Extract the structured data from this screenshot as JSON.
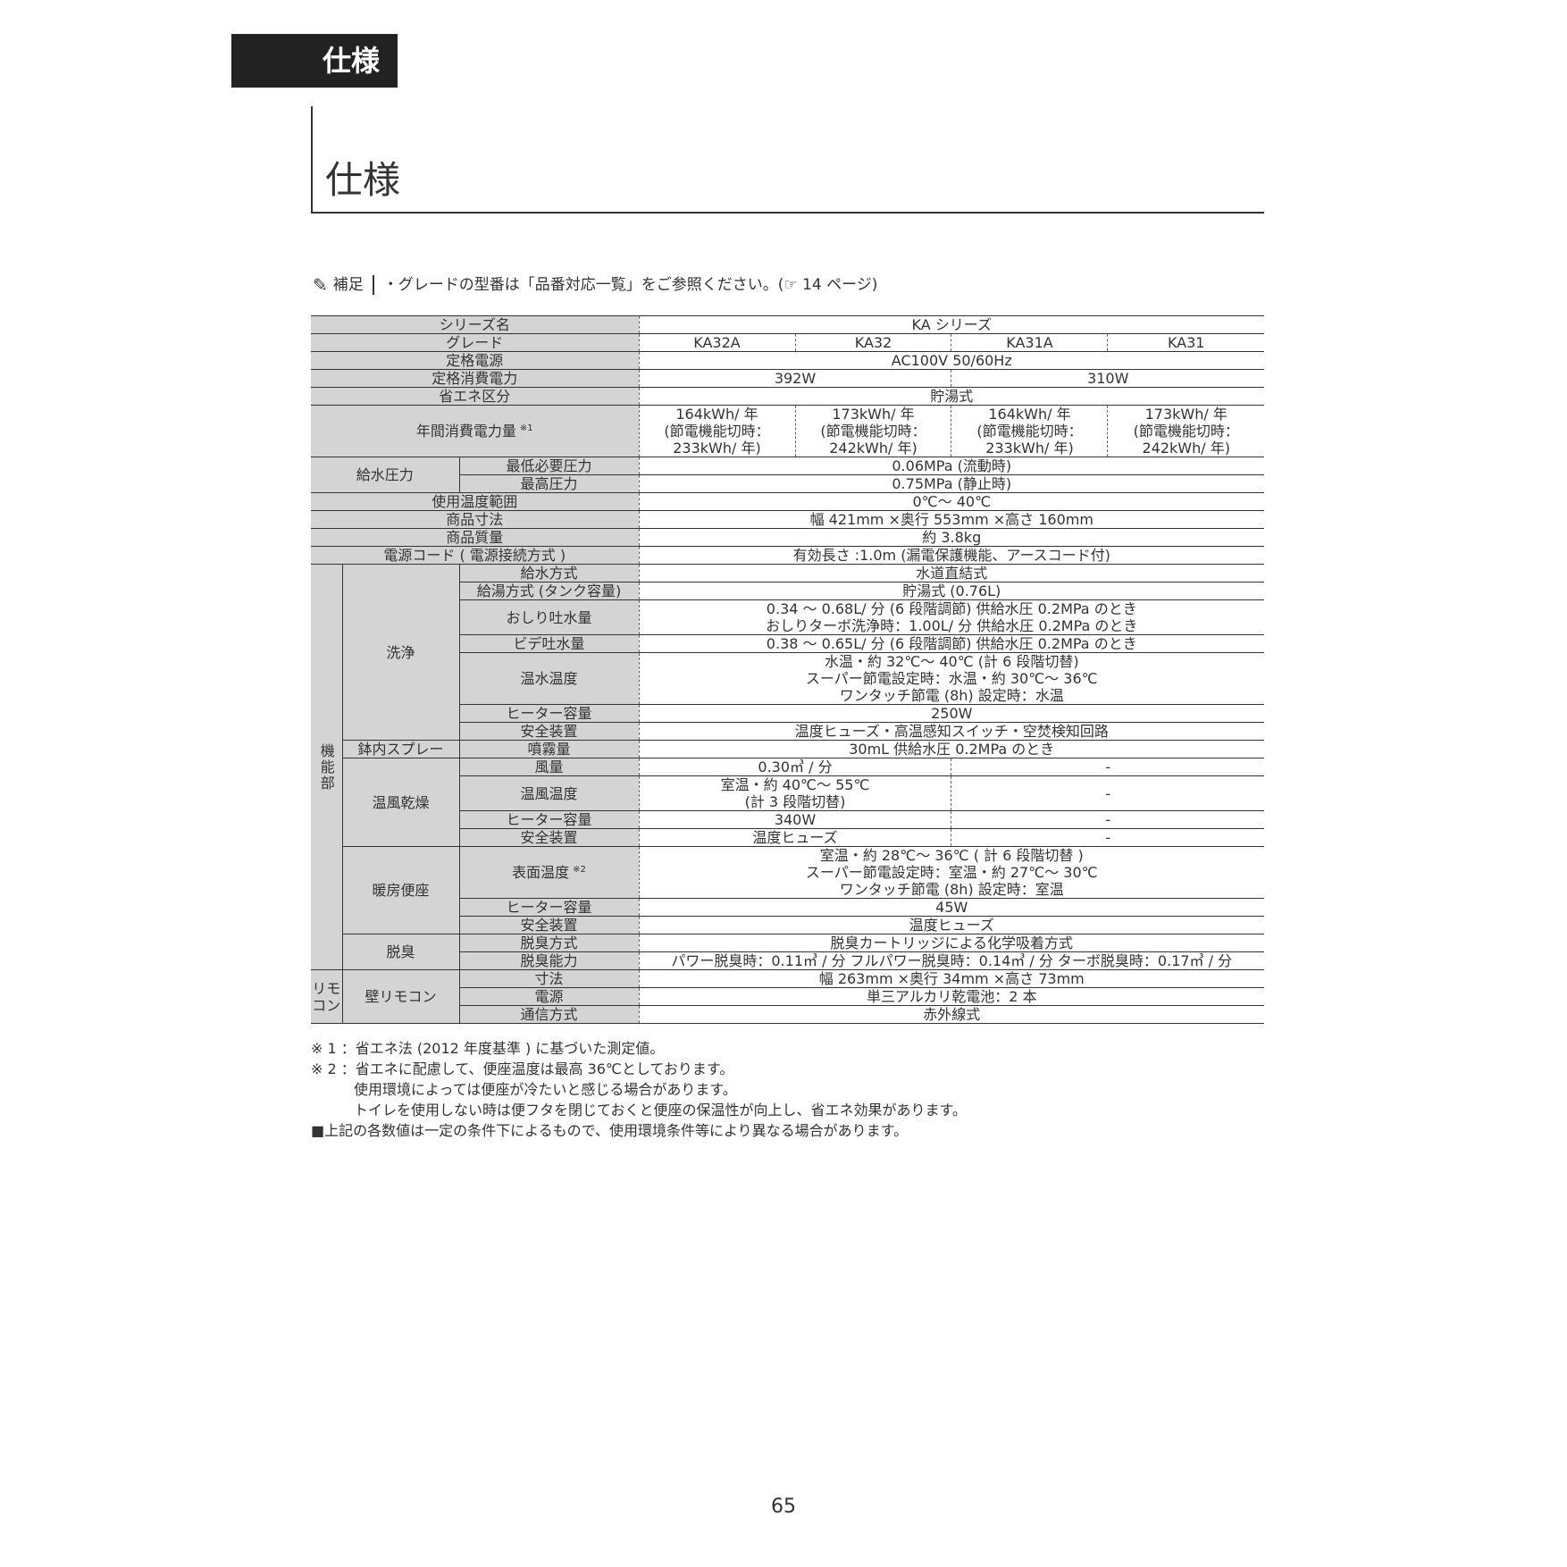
{
  "header": {
    "tab_label": "仕様",
    "title": "仕様"
  },
  "supplement": {
    "icon": "pencil-icon",
    "label": "補足",
    "text": "・グレードの型番は「品番対応一覧」をご参照ください。(☞ 14 ページ)"
  },
  "spec_table": {
    "rows": [
      {
        "label": "シリーズ名",
        "values": [
          "KA シリーズ"
        ]
      },
      {
        "label": "グレード",
        "values": [
          "KA32A",
          "KA32",
          "KA31A",
          "KA31"
        ]
      },
      {
        "label": "定格電源",
        "values": [
          "AC100V 50/60Hz"
        ]
      },
      {
        "label": "定格消費電力",
        "values": [
          "392W",
          "310W"
        ]
      },
      {
        "label": "省エネ区分",
        "values": [
          "貯湯式"
        ]
      },
      {
        "label": "年間消費電力量",
        "note": "※1",
        "values": [
          "164kWh/ 年\n(節電機能切時：\n233kWh/ 年)",
          "173kWh/ 年\n(節電機能切時：\n242kWh/ 年)",
          "164kWh/ 年\n(節電機能切時：\n233kWh/ 年)",
          "173kWh/ 年\n(節電機能切時：\n242kWh/ 年)"
        ]
      },
      {
        "section": "給水圧力",
        "item": "最低必要圧力",
        "values": [
          "0.06MPa (流動時)"
        ]
      },
      {
        "section": "給水圧力",
        "item": "最高圧力",
        "values": [
          "0.75MPa (静止時)"
        ]
      },
      {
        "label": "使用温度範囲",
        "values": [
          "0℃～ 40℃"
        ]
      },
      {
        "label": "商品寸法",
        "values": [
          "幅 421mm ×奥行 553mm ×高さ 160mm"
        ]
      },
      {
        "label": "商品質量",
        "values": [
          "約 3.8kg"
        ]
      },
      {
        "label": "電源コード ( 電源接続方式 )",
        "values": [
          "有効長さ :1.0m (漏電保護機能、アースコード付)"
        ]
      },
      {
        "group": "機能部",
        "section": "洗浄",
        "item": "給水方式",
        "values": [
          "水道直結式"
        ]
      },
      {
        "group": "機能部",
        "section": "洗浄",
        "item": "給湯方式 (タンク容量)",
        "values": [
          "貯湯式 (0.76L)"
        ]
      },
      {
        "group": "機能部",
        "section": "洗浄",
        "item": "おしり吐水量",
        "values": [
          "0.34 ～ 0.68L/ 分 (6 段階調節)  供給水圧 0.2MPa のとき\nおしりターボ洗浄時：1.00L/ 分 供給水圧 0.2MPa のとき"
        ]
      },
      {
        "group": "機能部",
        "section": "洗浄",
        "item": "ビデ吐水量",
        "values": [
          "0.38 ～ 0.65L/ 分 (6 段階調節)  供給水圧 0.2MPa のとき"
        ]
      },
      {
        "group": "機能部",
        "section": "洗浄",
        "item": "温水温度",
        "values": [
          "水温・約 32℃～ 40℃ (計 6 段階切替)\nスーパー節電設定時：水温・約 30℃～ 36℃\nワンタッチ節電 (8h) 設定時：水温"
        ]
      },
      {
        "group": "機能部",
        "section": "洗浄",
        "item": "ヒーター容量",
        "values": [
          "250W"
        ]
      },
      {
        "group": "機能部",
        "section": "洗浄",
        "item": "安全装置",
        "values": [
          "温度ヒューズ・高温感知スイッチ・空焚検知回路"
        ]
      },
      {
        "group": "機能部",
        "section": "鉢内スプレー",
        "item": "噴霧量",
        "values": [
          "30mL 供給水圧 0.2MPa のとき"
        ]
      },
      {
        "group": "機能部",
        "section": "温風乾燥",
        "item": "風量",
        "values": [
          "0.30㎥ / 分",
          "-"
        ]
      },
      {
        "group": "機能部",
        "section": "温風乾燥",
        "item": "温風温度",
        "values": [
          "室温・約 40℃～ 55℃\n(計 3 段階切替)",
          "-"
        ]
      },
      {
        "group": "機能部",
        "section": "温風乾燥",
        "item": "ヒーター容量",
        "values": [
          "340W",
          "-"
        ]
      },
      {
        "group": "機能部",
        "section": "温風乾燥",
        "item": "安全装置",
        "values": [
          "温度ヒューズ",
          "-"
        ]
      },
      {
        "group": "機能部",
        "section": "暖房便座",
        "item": "表面温度",
        "note": "※2",
        "values": [
          "室温・約 28℃～ 36℃ ( 計 6 段階切替 )\nスーパー節電設定時：室温・約 27℃～ 30℃\nワンタッチ節電 (8h)  設定時：室温"
        ]
      },
      {
        "group": "機能部",
        "section": "暖房便座",
        "item": "ヒーター容量",
        "values": [
          "45W"
        ]
      },
      {
        "group": "機能部",
        "section": "暖房便座",
        "item": "安全装置",
        "values": [
          "温度ヒューズ"
        ]
      },
      {
        "group": "機能部",
        "section": "脱臭",
        "item": "脱臭方式",
        "values": [
          "脱臭カートリッジによる化学吸着方式"
        ]
      },
      {
        "group": "機能部",
        "section": "脱臭",
        "item": "脱臭能力",
        "values": [
          "パワー脱臭時：0.11㎥ / 分 フルパワー脱臭時：0.14㎥ / 分 ターボ脱臭時：0.17㎥ / 分"
        ]
      },
      {
        "group": "リモ\nコン",
        "section": "壁リモコン",
        "item": "寸法",
        "values": [
          "幅 263mm ×奥行 34mm ×高さ 73mm"
        ]
      },
      {
        "group": "リモ\nコン",
        "section": "壁リモコン",
        "item": "電源",
        "values": [
          "単三アルカリ乾電池：2 本"
        ]
      },
      {
        "group": "リモ\nコン",
        "section": "壁リモコン",
        "item": "通信方式",
        "values": [
          "赤外線式"
        ]
      }
    ]
  },
  "footnotes": [
    "※ 1 ：省エネ法 (2012 年度基準 ) に基づいた測定値。",
    "※ 2 ：省エネに配慮して、便座温度は最高 36℃としております。",
    "使用環境によっては便座が冷たいと感じる場合があります。",
    "トイレを使用しない時は便フタを閉じておくと便座の保温性が向上し、省エネ効果があります。",
    "■上記の各数値は一定の条件下によるもので、使用環境条件等により異なる場合があります。"
  ],
  "page_number": "65"
}
